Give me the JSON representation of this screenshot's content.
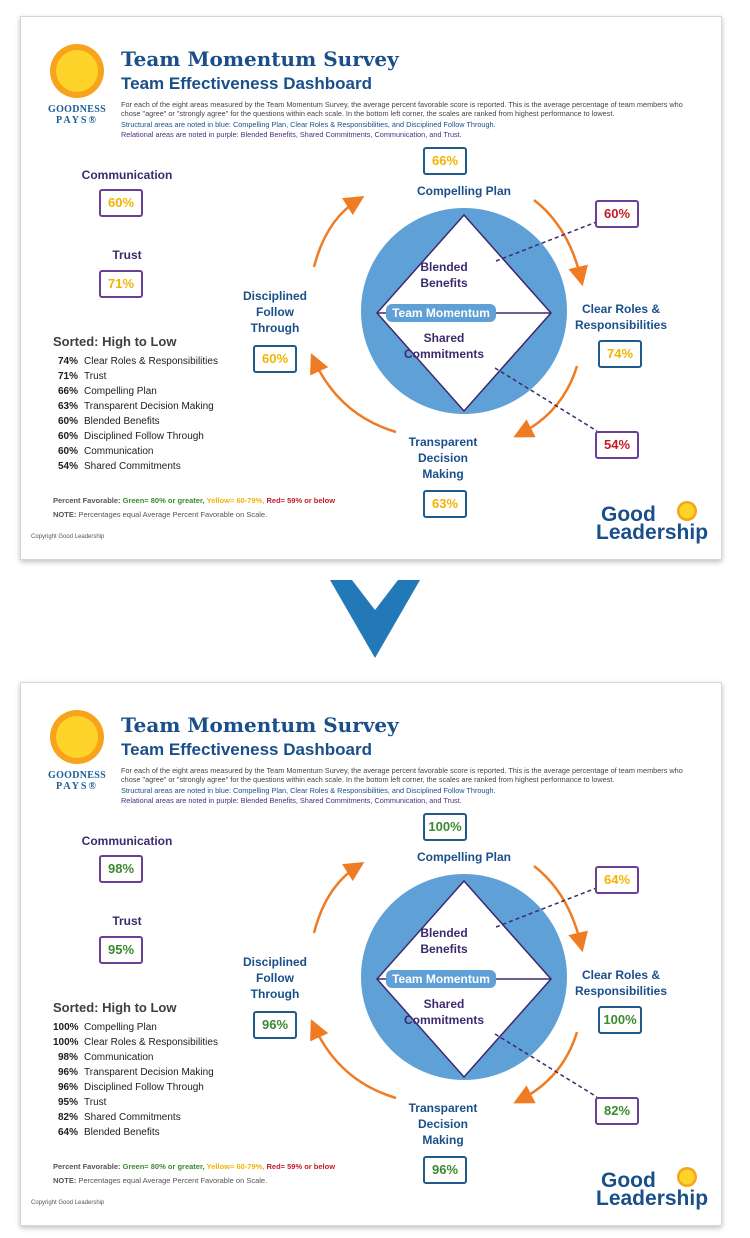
{
  "colors": {
    "green": "#3a8a2f",
    "yellow": "#f2b400",
    "red": "#c41a25",
    "structural_blue": "#1a4f8a",
    "relational_purple": "#4a2c7f",
    "circle": "#5fa0d6",
    "arrows": "#ef7b22"
  },
  "dashboards": [
    {
      "title": "Team Momentum Survey",
      "subtitle": "Team Effectiveness Dashboard",
      "brand_line1": "GOODNESS",
      "brand_line2": "PAYS®",
      "description": "For each of the eight areas measured by the Team Momentum Survey, the average percent favorable score is reported. This is the average percentage of team members who chose \"agree\" or \"strongly agree\" for the questions within each scale. In the bottom left corner, the scales are ranked from highest performance to lowest.",
      "structural_note": "Structural areas are noted in blue: Compelling Plan, Clear Roles & Responsibilities, and Disciplined Follow Through.",
      "relational_note": "Relational areas are noted in purple: Blended Benefits, Shared Commitments, Communication, and Trust.",
      "center_label": "Team Momentum",
      "scales": {
        "compelling_plan": {
          "label": "Compelling Plan",
          "value": "66%",
          "color": "yellow"
        },
        "clear_roles": {
          "label": "Clear Roles & Responsibilities",
          "value": "74%",
          "color": "yellow"
        },
        "transparent": {
          "label": "Transparent Decision Making",
          "value": "63%",
          "color": "yellow"
        },
        "disciplined": {
          "label": "Disciplined Follow Through",
          "value": "60%",
          "color": "yellow"
        },
        "blended": {
          "label": "Blended Benefits",
          "value": "60%",
          "color": "red"
        },
        "shared": {
          "label": "Shared Commitments",
          "value": "54%",
          "color": "red"
        },
        "communication": {
          "label": "Communication",
          "value": "60%",
          "color": "yellow"
        },
        "trust": {
          "label": "Trust",
          "value": "71%",
          "color": "yellow"
        }
      },
      "sorted_title": "Sorted: High to Low",
      "sorted": [
        {
          "pct": "74%",
          "name": "Clear Roles & Responsibilities"
        },
        {
          "pct": "71%",
          "name": "Trust"
        },
        {
          "pct": "66%",
          "name": "Compelling Plan"
        },
        {
          "pct": "63%",
          "name": "Transparent Decision Making"
        },
        {
          "pct": "60%",
          "name": "Blended Benefits"
        },
        {
          "pct": "60%",
          "name": "Disciplined Follow Through"
        },
        {
          "pct": "60%",
          "name": "Communication"
        },
        {
          "pct": "54%",
          "name": "Shared Commitments"
        }
      ],
      "legend_prefix": "Percent Favorable:",
      "legend_green": "Green= 80% or greater,",
      "legend_yellow": "Yellow= 60-79%,",
      "legend_red": "Red= 59% or below",
      "note_label": "NOTE:",
      "note_text": "Percentages equal Average Percent Favorable on Scale.",
      "copyright": "Copyright Good Leadership",
      "gl_line1": "Good",
      "gl_line2": "Leadership"
    },
    {
      "title": "Team Momentum Survey",
      "subtitle": "Team Effectiveness Dashboard",
      "brand_line1": "GOODNESS",
      "brand_line2": "PAYS®",
      "description": "For each of the eight areas measured by the Team Momentum Survey, the average percent favorable score is reported. This is the average percentage of team members who chose \"agree\" or \"strongly agree\" for the questions within each scale. In the bottom left corner, the scales are ranked from highest performance to lowest.",
      "structural_note": "Structural areas are noted in blue: Compelling Plan, Clear Roles & Responsibilities, and Disciplined Follow Through.",
      "relational_note": "Relational areas are noted in purple: Blended Benefits, Shared Commitments, Communication, and Trust.",
      "center_label": "Team Momentum",
      "scales": {
        "compelling_plan": {
          "label": "Compelling Plan",
          "value": "100%",
          "color": "green"
        },
        "clear_roles": {
          "label": "Clear Roles & Responsibilities",
          "value": "100%",
          "color": "green"
        },
        "transparent": {
          "label": "Transparent Decision Making",
          "value": "96%",
          "color": "green"
        },
        "disciplined": {
          "label": "Disciplined Follow Through",
          "value": "96%",
          "color": "green"
        },
        "blended": {
          "label": "Blended Benefits",
          "value": "64%",
          "color": "yellow"
        },
        "shared": {
          "label": "Shared Commitments",
          "value": "82%",
          "color": "green"
        },
        "communication": {
          "label": "Communication",
          "value": "98%",
          "color": "green"
        },
        "trust": {
          "label": "Trust",
          "value": "95%",
          "color": "green"
        }
      },
      "sorted_title": "Sorted: High to Low",
      "sorted": [
        {
          "pct": "100%",
          "name": "Compelling Plan"
        },
        {
          "pct": "100%",
          "name": "Clear Roles & Responsibilities"
        },
        {
          "pct": "98%",
          "name": "Communication"
        },
        {
          "pct": "96%",
          "name": "Transparent Decision Making"
        },
        {
          "pct": "96%",
          "name": "Disciplined Follow Through"
        },
        {
          "pct": "95%",
          "name": "Trust"
        },
        {
          "pct": "82%",
          "name": "Shared Commitments"
        },
        {
          "pct": "64%",
          "name": "Blended Benefits"
        }
      ],
      "legend_prefix": "Percent Favorable:",
      "legend_green": "Green= 80% or greater,",
      "legend_yellow": "Yellow= 60-79%,",
      "legend_red": "Red= 59% or below",
      "note_label": "NOTE:",
      "note_text": "Percentages equal Average Percent Favorable on Scale.",
      "copyright": "Copyright Good Leadership",
      "gl_line1": "Good",
      "gl_line2": "Leadership"
    }
  ]
}
